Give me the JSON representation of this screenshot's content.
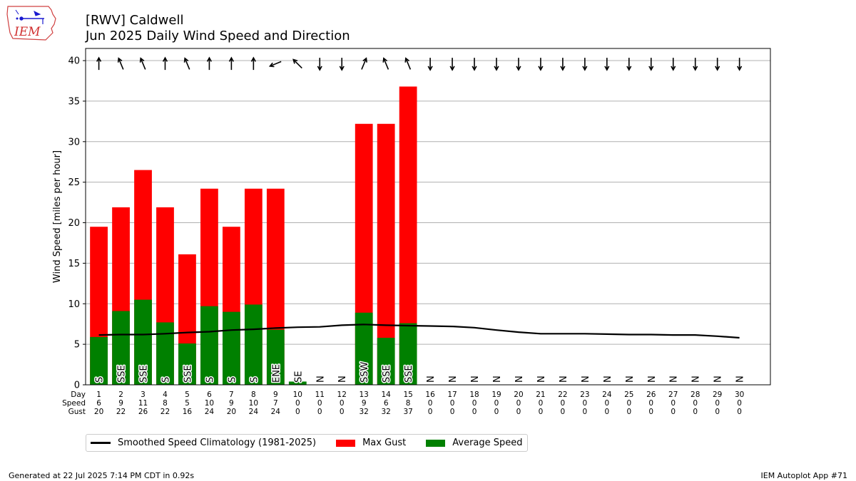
{
  "logo_text": "IEM",
  "title_line1": "[RWV] Caldwell",
  "title_line2": "Jun 2025 Daily Wind Speed and Direction",
  "footer_left": "Generated at 22 Jul 2025 7:14 PM CDT in 0.92s",
  "footer_right": "IEM Autoplot App #71",
  "colors": {
    "gust": "#ff0000",
    "avg": "#008000",
    "clim": "#000000",
    "grid": "#b0b0b0"
  },
  "legend": [
    {
      "label": "Smoothed Speed Climatology (1981-2025)",
      "kind": "line",
      "color": "#000000"
    },
    {
      "label": "Max Gust",
      "kind": "box",
      "color": "#ff0000"
    },
    {
      "label": "Average Speed",
      "kind": "box",
      "color": "#008000"
    }
  ],
  "chart_data": {
    "type": "bar",
    "ylabel": "Wind Speed [miles per hour]",
    "ylim": [
      0,
      41.5
    ],
    "yticks": [
      0,
      5,
      10,
      15,
      20,
      25,
      30,
      35,
      40
    ],
    "grid": true,
    "legend_position": "below",
    "table_row_labels": [
      "Day",
      "Speed",
      "Gust"
    ],
    "days": [
      1,
      2,
      3,
      4,
      5,
      6,
      7,
      8,
      9,
      10,
      11,
      12,
      13,
      14,
      15,
      16,
      17,
      18,
      19,
      20,
      21,
      22,
      23,
      24,
      25,
      26,
      27,
      28,
      29,
      30
    ],
    "speed_labels": [
      6,
      9,
      11,
      8,
      5,
      10,
      9,
      10,
      7,
      0,
      0,
      0,
      9,
      6,
      8,
      0,
      0,
      0,
      0,
      0,
      0,
      0,
      0,
      0,
      0,
      0,
      0,
      0,
      0,
      0
    ],
    "gust_labels": [
      20,
      22,
      26,
      22,
      16,
      24,
      20,
      24,
      24,
      0,
      0,
      0,
      32,
      32,
      37,
      0,
      0,
      0,
      0,
      0,
      0,
      0,
      0,
      0,
      0,
      0,
      0,
      0,
      0,
      0
    ],
    "series": [
      {
        "name": "Max Gust",
        "values": [
          19.5,
          21.9,
          26.5,
          21.9,
          16.1,
          24.2,
          19.5,
          24.2,
          24.2,
          0,
          0,
          0,
          32.2,
          32.2,
          36.8,
          0,
          0,
          0,
          0,
          0,
          0,
          0,
          0,
          0,
          0,
          0,
          0,
          0,
          0,
          0
        ]
      },
      {
        "name": "Average Speed",
        "values": [
          5.9,
          9.1,
          10.5,
          7.7,
          5.1,
          9.7,
          9.0,
          9.9,
          6.8,
          0.4,
          0,
          0,
          8.9,
          5.8,
          7.6,
          0,
          0,
          0,
          0,
          0,
          0,
          0,
          0,
          0,
          0,
          0,
          0,
          0,
          0,
          0
        ]
      },
      {
        "name": "Smoothed Speed Climatology (1981-2025)",
        "values": [
          6.15,
          6.2,
          6.2,
          6.3,
          6.45,
          6.55,
          6.75,
          6.85,
          7.0,
          7.1,
          7.15,
          7.35,
          7.45,
          7.35,
          7.3,
          7.25,
          7.2,
          7.05,
          6.75,
          6.5,
          6.3,
          6.3,
          6.3,
          6.25,
          6.2,
          6.2,
          6.15,
          6.15,
          6.0,
          5.8
        ]
      }
    ],
    "direction_labels": [
      "S",
      "SSE",
      "SSE",
      "S",
      "SSE",
      "S",
      "S",
      "S",
      "ENE",
      "SE",
      "N",
      "N",
      "SSW",
      "SSE",
      "SSE",
      "N",
      "N",
      "N",
      "N",
      "N",
      "N",
      "N",
      "N",
      "N",
      "N",
      "N",
      "N",
      "N",
      "N",
      "N"
    ],
    "arrow_directions_deg": [
      180,
      157.5,
      157.5,
      180,
      157.5,
      180,
      180,
      180,
      67.5,
      135,
      0,
      0,
      202.5,
      157.5,
      157.5,
      0,
      0,
      0,
      0,
      0,
      0,
      0,
      0,
      0,
      0,
      0,
      0,
      0,
      0,
      0
    ]
  }
}
